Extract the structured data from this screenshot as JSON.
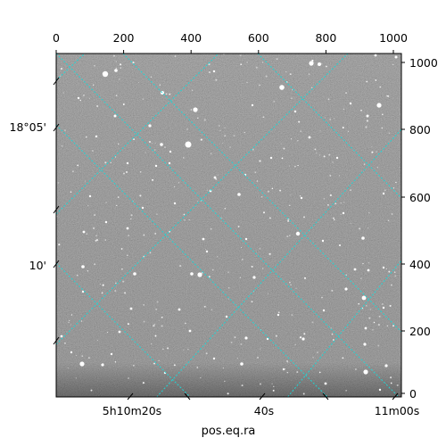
{
  "top_axis": {
    "ticks": [
      {
        "value": 0,
        "label": "0"
      },
      {
        "value": 200,
        "label": "200"
      },
      {
        "value": 400,
        "label": "400"
      },
      {
        "value": 600,
        "label": "600"
      },
      {
        "value": 800,
        "label": "800"
      },
      {
        "value": 1000,
        "label": "1000"
      }
    ],
    "range": [
      0,
      1024
    ]
  },
  "right_axis": {
    "ticks": [
      {
        "value": 0,
        "label": "0"
      },
      {
        "value": 200,
        "label": "200"
      },
      {
        "value": 400,
        "label": "400"
      },
      {
        "value": 600,
        "label": "600"
      },
      {
        "value": 800,
        "label": "800"
      },
      {
        "value": 1000,
        "label": "1000"
      }
    ],
    "range": [
      0,
      1024
    ]
  },
  "left_axis": {
    "labels": [
      "18°05'",
      "10'"
    ]
  },
  "bottom_axis": {
    "labels": [
      "5h10m20s",
      "40s",
      "11m00s"
    ],
    "title": "pos.eq.ra"
  },
  "colors": {
    "grid": "#1fd6d6",
    "frame": "#000000"
  }
}
